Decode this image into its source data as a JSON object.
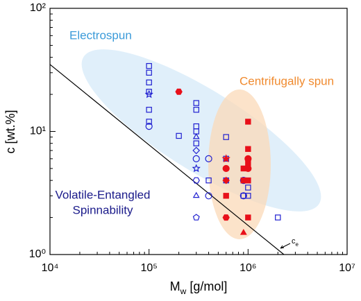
{
  "chart_data": {
    "type": "scatter",
    "xlabel": [
      "M",
      "w",
      " [g/mol]"
    ],
    "ylabel": "c [wt.%]",
    "log_x": true,
    "log_y": true,
    "xlim": [
      10000,
      10000000
    ],
    "ylim": [
      1,
      100
    ],
    "xticks": [
      {
        "value": 10000,
        "label": "10⁴"
      },
      {
        "value": 100000,
        "label": "10⁵"
      },
      {
        "value": 1000000,
        "label": "10⁶"
      },
      {
        "value": 10000000,
        "label": "10⁷"
      }
    ],
    "yticks": [
      {
        "value": 1,
        "label": "10⁰"
      },
      {
        "value": 10,
        "label": "10¹"
      },
      {
        "value": 100,
        "label": "10²"
      }
    ],
    "annotations": {
      "electrospun": "Electrospun",
      "centrifugal": "Centrifugally spun",
      "volatile": [
        "Volatile-Entangled",
        "Spinnability"
      ]
    },
    "ce_line": {
      "label": [
        "c",
        "e"
      ],
      "color": "#000000",
      "x": [
        10000,
        2300000
      ],
      "y": [
        35,
        1
      ]
    },
    "series": [
      {
        "color": "#1f1fd0",
        "filled": false,
        "x": [
          100000,
          100000,
          100000,
          100000,
          100000,
          100000,
          100000,
          100000,
          200000,
          300000,
          300000,
          300000,
          300000,
          300000,
          300000,
          300000,
          300000,
          300000,
          300000,
          300000,
          300000,
          400000,
          400000,
          400000,
          600000,
          600000,
          600000,
          900000,
          900000,
          900000,
          900000,
          1000000,
          1000000,
          1000000,
          2000000
        ],
        "y": [
          34,
          30,
          25,
          21,
          20,
          15,
          12,
          11,
          9.2,
          17,
          15,
          11,
          10,
          9,
          8,
          7,
          6,
          5,
          4,
          3,
          2,
          6,
          4,
          3,
          9,
          6,
          4,
          4,
          4,
          3,
          3,
          4,
          3.5,
          3,
          2
        ],
        "markers": [
          "square",
          "square",
          "square",
          "square",
          "star",
          "square",
          "square",
          "circle",
          "square",
          "square",
          "square",
          "square",
          "square",
          "triangle",
          "square",
          "diamond",
          "circle",
          "star",
          "hexagon",
          "triangle",
          "pentagon",
          "circle",
          "square",
          "circle",
          "square",
          "square",
          "square",
          "circle",
          "square",
          "circle",
          "square",
          "square",
          "square",
          "square",
          "square"
        ]
      },
      {
        "color": "#e8101a",
        "filled": true,
        "x": [
          200000,
          600000,
          600000,
          600000,
          600000,
          600000,
          900000,
          900000,
          900000,
          1000000,
          1000000,
          1000000,
          1000000,
          1000000,
          1000000,
          1000000
        ],
        "y": [
          21,
          6,
          5,
          4,
          3,
          2,
          1.5,
          5,
          4,
          12,
          7.2,
          5.5,
          5,
          6,
          4,
          2
        ],
        "markers": [
          "hexagon",
          "star",
          "circle",
          "diamond",
          "square",
          "hexagon",
          "triangle",
          "square",
          "square",
          "square",
          "square",
          "square",
          "circle",
          "circle",
          "square",
          "square"
        ]
      }
    ]
  }
}
